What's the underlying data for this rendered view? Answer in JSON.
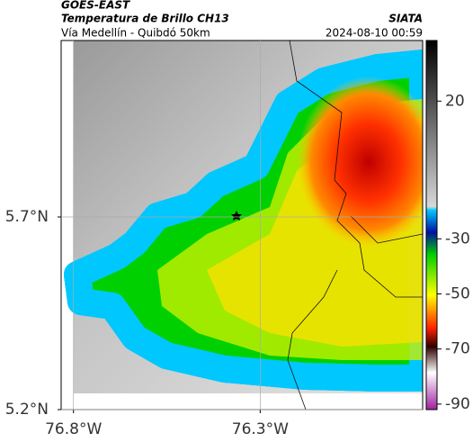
{
  "header": {
    "title": "GOES-EAST",
    "subtitle": "Temperatura de Brillo CH13",
    "region": "Vía Medellín - Quibdó 50km",
    "source": "SIATA",
    "datetime": "2024-08-10 00:59"
  },
  "map": {
    "xlim": [
      -76.833,
      -75.865
    ],
    "ylim": [
      5.2,
      6.158
    ],
    "xticks": [
      {
        "value": -76.8,
        "label": "76.8°W"
      },
      {
        "value": -76.3,
        "label": "76.3°W"
      }
    ],
    "yticks": [
      {
        "value": 5.7,
        "label": "5.7°N"
      },
      {
        "value": 5.2,
        "label": "5.2°N"
      }
    ]
  },
  "colorbar": {
    "lim": [
      -92,
      42
    ],
    "ticks": [
      20,
      -30,
      -50,
      -70,
      -90
    ]
  }
}
